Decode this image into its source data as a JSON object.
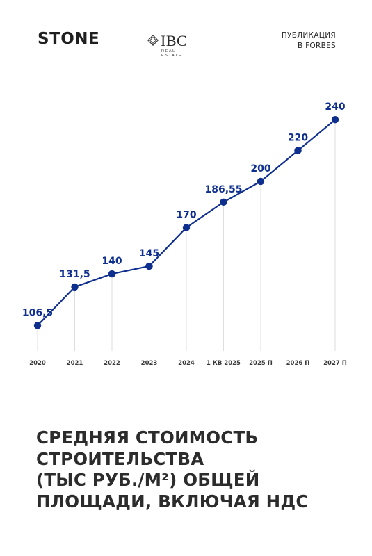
{
  "header": {
    "brand_left": "STONE",
    "brand_center": "IBC",
    "brand_center_sub": "REAL ESTATE",
    "publication_line1": "ПУБЛИКАЦИЯ",
    "publication_line2": "В FORBES"
  },
  "colors": {
    "series": "#0f2f8f",
    "gridline": "#dedede",
    "text": "#2c2c2c"
  },
  "chart_data": {
    "type": "line",
    "title": "",
    "xlabel": "",
    "ylabel": "",
    "grid": "vertical",
    "ylim": [
      90,
      250
    ],
    "categories": [
      "2020",
      "2021",
      "2022",
      "2023",
      "2024",
      "1 КВ 2025",
      "2025 П",
      "2026 П",
      "2027 П"
    ],
    "series": [
      {
        "values": [
          106.5,
          131.5,
          140,
          145,
          170,
          186.55,
          200,
          220,
          240
        ],
        "labels": [
          "106,5",
          "131,5",
          "140",
          "145",
          "170",
          "186,55",
          "200",
          "220",
          "240"
        ]
      }
    ]
  },
  "caption": {
    "line1": "СРЕДНЯЯ СТОИМОСТЬ",
    "line2": "СТРОИТЕЛЬСТВА",
    "line3": "(ТЫС РУБ./М²) ОБЩЕЙ",
    "line4": "ПЛОЩАДИ, ВКЛЮЧАЯ НДС"
  }
}
